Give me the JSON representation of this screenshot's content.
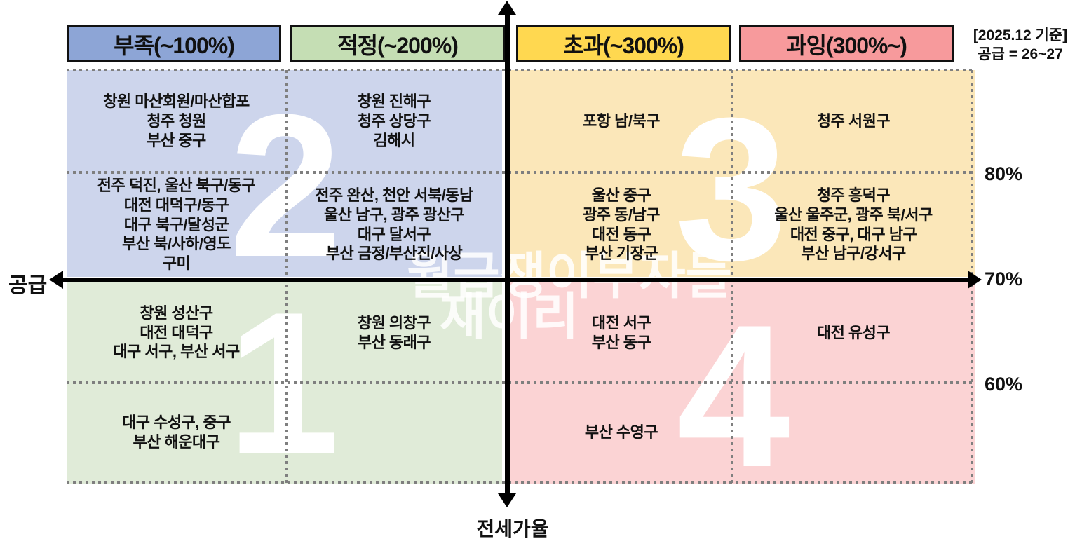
{
  "meta_note": {
    "line1": "[2025.12 기준]",
    "line2": "공급 = 26~27"
  },
  "headers": [
    {
      "id": "shortage",
      "label": "부족(~100%)",
      "bg": "#8DA5D6"
    },
    {
      "id": "adequate",
      "label": "적정(~200%)",
      "bg": "#C5DEB4"
    },
    {
      "id": "excess",
      "label": "초과(~300%)",
      "bg": "#FFD850"
    },
    {
      "id": "oversupply",
      "label": "과잉(300%~)",
      "bg": "#F79A9C"
    }
  ],
  "axes": {
    "left_label": "공급",
    "bottom_label": "전세가율",
    "ticks": [
      "80%",
      "70%",
      "60%"
    ]
  },
  "quadrant_numbers": {
    "q1": "1",
    "q2": "2",
    "q3": "3",
    "q4": "4"
  },
  "regions": {
    "blue": "#CDD5EC",
    "yellow": "#FBE7B9",
    "green": "#E0EBD8",
    "pink": "#FBD3D4"
  },
  "watermark": {
    "line1": "월급쟁이부자들",
    "line2": "재이리"
  },
  "cells": {
    "r1c1": {
      "lines": [
        "창원 마산회원/마산합포",
        "청주 청원",
        "부산 중구"
      ]
    },
    "r1c2": {
      "lines": [
        "창원 진해구",
        "청주 상당구",
        "김해시"
      ]
    },
    "r1c3": {
      "lines": [
        "포항 남/북구"
      ]
    },
    "r1c4": {
      "lines": [
        "청주 서원구"
      ]
    },
    "r2c1": {
      "lines": [
        "전주 덕진, 울산 북구/동구",
        "대전 대덕구/동구",
        "대구 북구/달성군",
        "부산 북/사하/영도",
        "구미"
      ]
    },
    "r2c2": {
      "lines": [
        "전주 완산, 천안 서북/동남",
        "울산 남구, 광주 광산구",
        "대구 달서구",
        "부산 금정/부산진/사상"
      ]
    },
    "r2c3": {
      "lines": [
        "울산 중구",
        "광주 동/남구",
        "대전 동구",
        "부산 기장군"
      ]
    },
    "r2c4": {
      "lines": [
        "청주 흥덕구",
        "울산 울주군, 광주 북/서구",
        "대전 중구, 대구 남구",
        "부산 남구/강서구"
      ]
    },
    "r3c1": {
      "lines": [
        "창원 성산구",
        "대전 대덕구",
        "대구 서구, 부산 서구"
      ]
    },
    "r3c2": {
      "lines": [
        "창원 의창구",
        "부산 동래구"
      ]
    },
    "r3c3": {
      "lines": [
        "대전 서구",
        "부산 동구"
      ]
    },
    "r3c4": {
      "lines": [
        "대전 유성구"
      ]
    },
    "r4c1": {
      "lines": [
        "대구 수성구, 중구",
        "부산 해운대구"
      ]
    },
    "r4c3": {
      "lines": [
        "부산 수영구"
      ]
    }
  }
}
